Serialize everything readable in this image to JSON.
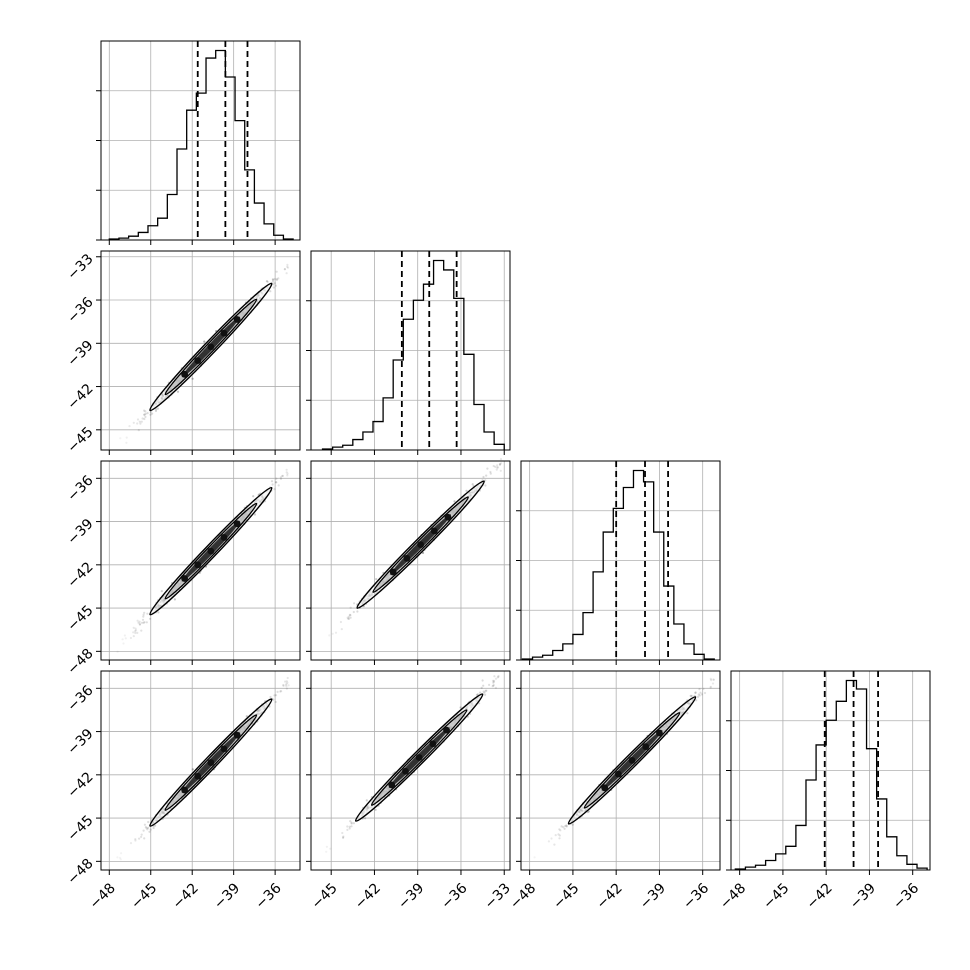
{
  "chart_data": {
    "type": "corner",
    "title": "",
    "colors": {
      "line": "#000000",
      "grid": "#b0b0b0",
      "scatter": "#3a3a3a",
      "contour_light": "#bfbfbf",
      "contour_dark": "#1a1a1a"
    },
    "grid": true,
    "variables": [
      {
        "index": 0,
        "range": [
          -48.6,
          -34.2
        ],
        "ticks": [
          -48,
          -45,
          -42,
          -39,
          -36
        ],
        "tick_labels": [
          "−48",
          "−45",
          "−42",
          "−39",
          "−36"
        ]
      },
      {
        "index": 1,
        "range": [
          -46.4,
          -32.6
        ],
        "ticks": [
          -45,
          -42,
          -39,
          -36,
          -33
        ],
        "tick_labels": [
          "−45",
          "−42",
          "−39",
          "−36",
          "−33"
        ]
      },
      {
        "index": 2,
        "range": [
          -48.6,
          -34.8
        ],
        "ticks": [
          -48,
          -45,
          -42,
          -39,
          -36
        ],
        "tick_labels": [
          "−48",
          "−45",
          "−42",
          "−39",
          "−36"
        ]
      },
      {
        "index": 3,
        "range": [
          -48.6,
          -34.8
        ],
        "ticks": [
          -48,
          -45,
          -42,
          -39,
          -36
        ],
        "tick_labels": [
          "−48",
          "−45",
          "−42",
          "−39",
          "−36"
        ]
      }
    ],
    "histograms": [
      {
        "var": 0,
        "quantiles": [
          -41.6,
          -39.6,
          -38.0
        ],
        "bin_edges": [
          -48.0,
          -47.3,
          -46.6,
          -45.9,
          -45.2,
          -44.5,
          -43.8,
          -43.1,
          -42.4,
          -41.7,
          -41.0,
          -40.3,
          -39.6,
          -38.9,
          -38.2,
          -37.5,
          -36.8,
          -36.1,
          -35.4,
          -34.7
        ],
        "counts": [
          1,
          2,
          4,
          8,
          15,
          23,
          48,
          96,
          137,
          155,
          192,
          200,
          172,
          126,
          74,
          39,
          17,
          5,
          1
        ]
      },
      {
        "var": 1,
        "quantiles": [
          -40.1,
          -38.2,
          -36.3
        ],
        "bin_edges": [
          -45.6,
          -44.9,
          -44.2,
          -43.5,
          -42.8,
          -42.1,
          -41.4,
          -40.7,
          -40.0,
          -39.3,
          -38.6,
          -37.9,
          -37.2,
          -36.5,
          -35.8,
          -35.1,
          -34.4,
          -33.7,
          -33.0
        ],
        "counts": [
          1,
          3,
          5,
          11,
          19,
          30,
          55,
          95,
          138,
          158,
          175,
          200,
          190,
          160,
          101,
          48,
          19,
          6
        ]
      },
      {
        "var": 2,
        "quantiles": [
          -42.0,
          -40.0,
          -38.4
        ],
        "bin_edges": [
          -48.5,
          -47.8,
          -47.1,
          -46.4,
          -45.7,
          -45.0,
          -44.3,
          -43.6,
          -42.9,
          -42.2,
          -41.5,
          -40.8,
          -40.1,
          -39.4,
          -38.7,
          -38.0,
          -37.3,
          -36.6,
          -35.9,
          -35.2
        ],
        "counts": [
          1,
          3,
          5,
          10,
          17,
          27,
          50,
          93,
          135,
          160,
          182,
          200,
          188,
          135,
          78,
          38,
          17,
          6,
          1
        ]
      },
      {
        "var": 3,
        "quantiles": [
          -42.1,
          -40.1,
          -38.4
        ],
        "bin_edges": [
          -48.3,
          -47.6,
          -46.9,
          -46.2,
          -45.5,
          -44.8,
          -44.1,
          -43.4,
          -42.7,
          -42.0,
          -41.3,
          -40.6,
          -39.9,
          -39.2,
          -38.5,
          -37.8,
          -37.1,
          -36.4,
          -35.7,
          -35.0
        ],
        "counts": [
          1,
          3,
          5,
          10,
          17,
          25,
          47,
          95,
          132,
          158,
          178,
          200,
          191,
          128,
          75,
          35,
          15,
          6,
          2
        ]
      }
    ],
    "scatter_pairs": [
      {
        "x_var": 0,
        "y_var": 1,
        "x_start": -47.5,
        "x_end": -35.0,
        "slope": 1.0,
        "intercept": 1.4
      },
      {
        "x_var": 0,
        "y_var": 2,
        "x_start": -47.5,
        "x_end": -35.0,
        "slope": 1.0,
        "intercept": -0.4
      },
      {
        "x_var": 1,
        "y_var": 2,
        "x_start": -45.6,
        "x_end": -33.2,
        "slope": 1.0,
        "intercept": -1.8
      },
      {
        "x_var": 0,
        "y_var": 3,
        "x_start": -47.5,
        "x_end": -35.0,
        "slope": 1.0,
        "intercept": -0.5
      },
      {
        "x_var": 1,
        "y_var": 3,
        "x_start": -45.6,
        "x_end": -33.4,
        "slope": 1.0,
        "intercept": -1.9
      },
      {
        "x_var": 2,
        "y_var": 3,
        "x_start": -47.8,
        "x_end": -35.2,
        "slope": 1.0,
        "intercept": -0.1
      }
    ]
  }
}
